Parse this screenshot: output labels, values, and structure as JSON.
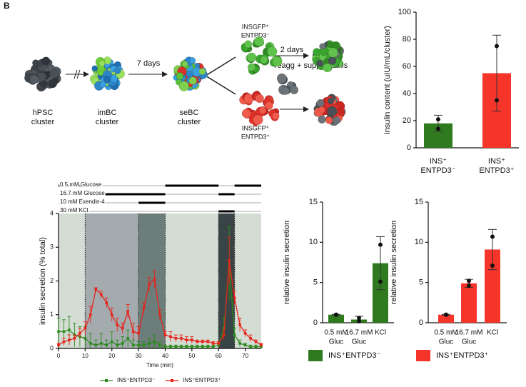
{
  "panel_label": "B",
  "diagram": {
    "stages": [
      {
        "lines": [
          "hPSC",
          "cluster"
        ]
      },
      {
        "lines": [
          "imBC",
          "cluster"
        ]
      },
      {
        "lines": [
          "seBC",
          "cluster"
        ]
      }
    ],
    "arrow_labels": [
      "7 days",
      "2 days"
    ],
    "populations": [
      {
        "lines": [
          "INSGFP⁺",
          "ENTPD3⁻"
        ]
      },
      {
        "lines": [
          "INSGFP⁺",
          "ENTPD3⁺"
        ]
      }
    ],
    "reagg": "reagg + support cells"
  },
  "chart_data": [
    {
      "type": "bar",
      "ylabel": "insulin content  (uIU/mL/cluster)",
      "categories": [
        [
          "INS⁺",
          "ENTPD3⁻"
        ],
        [
          "INS⁺",
          "ENTPD3⁺"
        ]
      ],
      "values": [
        18,
        55
      ],
      "errors": [
        6,
        28
      ],
      "points": [
        [
          21,
          14
        ],
        [
          75,
          35
        ]
      ],
      "colors": [
        "#2f7a1f",
        "#f5352a"
      ],
      "ylim": [
        0,
        100
      ],
      "yticks": [
        0,
        20,
        40,
        60,
        80,
        100
      ]
    },
    {
      "type": "line",
      "ylabel": "insulin secretion (% total)",
      "xlabel": "Time (min)",
      "xlim": [
        0,
        76
      ],
      "xticks": [
        0,
        10,
        20,
        30,
        40,
        50,
        60,
        70
      ],
      "ylim": [
        0,
        4
      ],
      "yticks": [
        0,
        1,
        2,
        3,
        4
      ],
      "phases": [
        {
          "range": [
            0,
            10
          ],
          "color": "#d3ddd4"
        },
        {
          "range": [
            10,
            30
          ],
          "color": "#a3abaf"
        },
        {
          "range": [
            30,
            40
          ],
          "color": "#6d7d7a"
        },
        {
          "range": [
            40,
            60
          ],
          "color": "#d3ddd4"
        },
        {
          "range": [
            60,
            66
          ],
          "color": "#394446"
        },
        {
          "range": [
            66,
            76
          ],
          "color": "#d3ddd4"
        }
      ],
      "conditions": [
        {
          "label": "0.5 mM Glucose",
          "on": [
            [
              0,
              10
            ],
            [
              40,
              60
            ],
            [
              66,
              76
            ]
          ]
        },
        {
          "label": "16.7 mM Glucose",
          "on": [
            [
              10,
              40
            ],
            [
              60,
              66
            ]
          ]
        },
        {
          "label": "10 mM Exendin-4",
          "on": [
            [
              30,
              40
            ]
          ]
        },
        {
          "label": "30 mM KCl",
          "on": [
            [
              60,
              66
            ]
          ]
        }
      ],
      "x": [
        0,
        2,
        4,
        6,
        8,
        10,
        12,
        14,
        16,
        18,
        20,
        22,
        24,
        26,
        28,
        30,
        32,
        34,
        36,
        38,
        40,
        42,
        44,
        46,
        48,
        50,
        52,
        54,
        56,
        58,
        60,
        62,
        64,
        66,
        68,
        70,
        72,
        74,
        76
      ],
      "series": [
        {
          "name": "INS⁺ENTPD3⁻",
          "color": "#2e8b1e",
          "values": [
            0.5,
            0.5,
            0.55,
            0.4,
            0.35,
            0.3,
            0.15,
            0.1,
            0.15,
            0.1,
            0.2,
            0.1,
            0.15,
            0.3,
            0.1,
            0.1,
            0.1,
            0.15,
            0.2,
            0.1,
            0.05,
            0.05,
            0.05,
            0.05,
            0.05,
            0.05,
            0.05,
            0.05,
            0.05,
            0.05,
            0.1,
            0.6,
            2.5,
            0.4,
            0.15,
            0.1,
            0.05,
            0.05,
            0.05
          ],
          "errors": [
            0.4,
            0.35,
            0.4,
            0.35,
            0.3,
            0.35,
            0.3,
            0.15,
            0.3,
            0.15,
            0.3,
            0.15,
            0.2,
            0.25,
            0.15,
            0.1,
            0.1,
            0.15,
            0.2,
            0.1,
            0.05,
            0.05,
            0.05,
            0.05,
            0.05,
            0.05,
            0.05,
            0.05,
            0.05,
            0.05,
            0.05,
            0.3,
            1.1,
            0.2,
            0.1,
            0.05,
            0.05,
            0.05,
            0.05
          ]
        },
        {
          "name": "INS⁺ENTPD3⁺",
          "color": "#e8231a",
          "values": [
            0.1,
            0.2,
            0.25,
            0.3,
            0.45,
            0.6,
            1.0,
            1.75,
            1.6,
            1.35,
            1.0,
            0.7,
            0.6,
            1.1,
            0.5,
            0.45,
            1.2,
            1.9,
            2.05,
            1.0,
            0.4,
            0.35,
            0.3,
            0.3,
            0.25,
            0.25,
            0.2,
            0.2,
            0.2,
            0.15,
            0.15,
            0.4,
            2.6,
            1.5,
            0.7,
            0.45,
            0.3,
            0.2,
            0.1
          ],
          "errors": [
            0.05,
            0.1,
            0.15,
            0.1,
            0.15,
            0.2,
            0.25,
            0.05,
            0.1,
            0.15,
            0.2,
            0.2,
            0.15,
            0.2,
            0.25,
            0.2,
            0.15,
            0.2,
            0.25,
            0.15,
            0.1,
            0.15,
            0.1,
            0.1,
            0.1,
            0.1,
            0.05,
            0.05,
            0.05,
            0.05,
            0.05,
            0.15,
            0.7,
            0.2,
            0.2,
            0.1,
            0.1,
            0.05,
            0.05
          ]
        }
      ]
    },
    {
      "type": "bar",
      "ylabel": "relative insulin secretion",
      "categories": [
        [
          "0.5 mM",
          "Gluc"
        ],
        [
          "16.7 mM",
          "Gluc"
        ],
        [
          "KCl"
        ]
      ],
      "values": [
        1.0,
        0.4,
        7.4
      ],
      "errors": [
        0.05,
        0.4,
        3.3
      ],
      "points": [
        [
          1,
          1
        ],
        [
          0.6,
          0.2
        ],
        [
          9.7,
          5.1
        ]
      ],
      "colors": [
        "#2f7a1f",
        "#2f7a1f",
        "#2f7a1f"
      ],
      "legend": "INS⁺ENTPD3⁻",
      "ylim": [
        0,
        15
      ],
      "yticks": [
        0,
        5,
        10,
        15
      ]
    },
    {
      "type": "bar",
      "ylabel": "relative insulin secretion",
      "categories": [
        [
          "0.5 mM",
          "Gluc"
        ],
        [
          "16.7 mM",
          "Gluc"
        ],
        [
          "KCl"
        ]
      ],
      "values": [
        1.0,
        4.9,
        9.1
      ],
      "errors": [
        0.05,
        0.5,
        2.5
      ],
      "points": [
        [
          1,
          1
        ],
        [
          4.6,
          5.2
        ],
        [
          10.7,
          7.1
        ]
      ],
      "colors": [
        "#f5352a",
        "#f5352a",
        "#f5352a"
      ],
      "legend": "INS⁺ENTPD3⁺",
      "ylim": [
        0,
        15
      ],
      "yticks": [
        0,
        5,
        10,
        15
      ]
    }
  ]
}
